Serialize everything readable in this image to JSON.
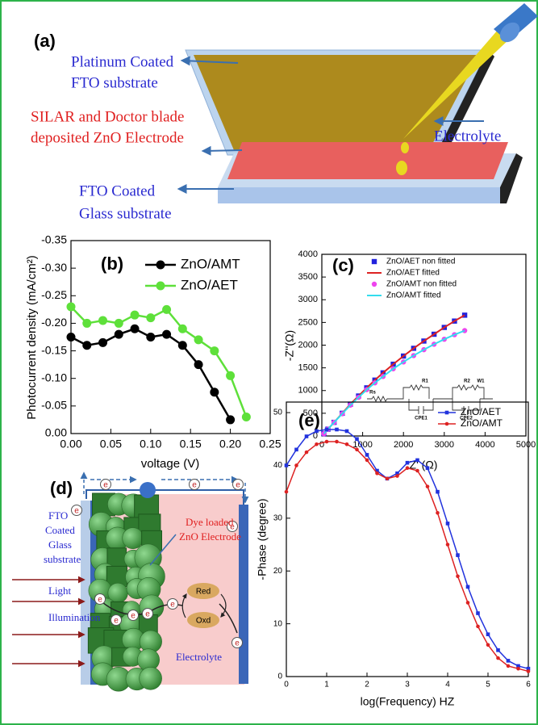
{
  "panel_a": {
    "label": "(a)",
    "platinum": [
      "Platinum Coated",
      "FTO substrate"
    ],
    "zno": [
      "SILAR and Doctor blade",
      "deposited ZnO Electrode"
    ],
    "fto": [
      "FTO Coated",
      "Glass substrate"
    ],
    "electrolyte": "Electrolyte"
  },
  "chart_data": [
    {
      "type": "line",
      "label": "(b)",
      "x_label": "voltage (V)",
      "y_label": "Photocurrent density (mA/cm²)",
      "xlim": [
        0,
        0.25
      ],
      "ylim": [
        0,
        -0.35
      ],
      "xticks": [
        {
          "value": 0,
          "label": "0.00"
        },
        0.05,
        {
          "value": 0.1,
          "label": "0.10"
        },
        0.15,
        {
          "value": 0.2,
          "label": "0.20"
        },
        0.25
      ],
      "yticks": [
        -0.35,
        {
          "value": -0.3,
          "label": "-0.30"
        },
        -0.25,
        {
          "value": -0.2,
          "label": "-0.20"
        },
        -0.15,
        {
          "value": -0.1,
          "label": "-0.10"
        },
        -0.05,
        {
          "value": 0,
          "label": "0.00"
        }
      ],
      "legend": "top-right",
      "series": [
        {
          "name": "ZnO/AMT",
          "color": "#000000",
          "marker": "circle",
          "x": [
            0,
            0.02,
            0.04,
            0.06,
            0.08,
            0.1,
            0.12,
            0.14,
            0.16,
            0.18,
            0.2
          ],
          "values": [
            -0.175,
            -0.16,
            -0.165,
            -0.18,
            -0.19,
            -0.175,
            -0.18,
            -0.16,
            -0.125,
            -0.075,
            -0.025
          ]
        },
        {
          "name": "ZnO/AET",
          "color": "#5ee03a",
          "marker": "circle",
          "x": [
            0,
            0.02,
            0.04,
            0.06,
            0.08,
            0.1,
            0.12,
            0.14,
            0.16,
            0.18,
            0.2,
            0.22
          ],
          "values": [
            -0.23,
            -0.2,
            -0.205,
            -0.2,
            -0.215,
            -0.21,
            -0.225,
            -0.19,
            -0.17,
            -0.15,
            -0.105,
            -0.03
          ]
        }
      ]
    },
    {
      "type": "scatter",
      "label": "(c)",
      "x_label": "Z' (Ω)",
      "y_label": "-Z''(Ω)",
      "xlim": [
        0,
        5000
      ],
      "ylim": [
        0,
        4000
      ],
      "xticks": [
        0,
        1000,
        2000,
        3000,
        4000,
        5000
      ],
      "yticks": [
        0,
        500,
        1000,
        1500,
        2000,
        2500,
        3000,
        3500,
        4000
      ],
      "legend": "top-right",
      "inset_labels": [
        "Rs",
        "R1",
        "R2",
        "W1",
        "CPE1",
        "CPE2"
      ],
      "x": [
        50,
        150,
        300,
        500,
        700,
        900,
        1100,
        1300,
        1500,
        1750,
        2000,
        2250,
        2500,
        2750,
        3000,
        3250,
        3500
      ],
      "series": [
        {
          "name": "ZnO/AET non fitted",
          "color": "#2222dd",
          "marker": "square",
          "line": false,
          "values": [
            50,
            150,
            300,
            500,
            700,
            880,
            1060,
            1230,
            1390,
            1580,
            1760,
            1930,
            2090,
            2240,
            2390,
            2530,
            2660
          ]
        },
        {
          "name": "ZnO/AET fitted",
          "color": "#dd2222",
          "values": [
            50,
            150,
            300,
            500,
            700,
            880,
            1060,
            1230,
            1390,
            1580,
            1760,
            1930,
            2090,
            2240,
            2390,
            2530,
            2660
          ]
        },
        {
          "name": "ZnO/AMT non fitted",
          "color": "#ee44ee",
          "marker": "circle",
          "line": false,
          "values": [
            50,
            150,
            300,
            490,
            680,
            850,
            1020,
            1170,
            1310,
            1480,
            1630,
            1770,
            1900,
            2020,
            2130,
            2230,
            2320
          ]
        },
        {
          "name": "ZnO/AMT fitted",
          "color": "#33ddee",
          "values": [
            50,
            150,
            300,
            490,
            680,
            850,
            1020,
            1170,
            1310,
            1480,
            1630,
            1770,
            1900,
            2020,
            2130,
            2230,
            2320
          ]
        }
      ]
    },
    {
      "type": "line",
      "label": "(e)",
      "x_label": "log(Frequency) HZ",
      "y_label": "-Phase (degree)",
      "xlim": [
        0,
        6
      ],
      "ylim": [
        0,
        52
      ],
      "xticks": [
        0,
        1,
        2,
        3,
        4,
        5,
        6
      ],
      "yticks": [
        0,
        10,
        20,
        30,
        40,
        50
      ],
      "legend": "top-right",
      "x": [
        0,
        0.25,
        0.5,
        0.75,
        1,
        1.25,
        1.5,
        1.75,
        2,
        2.25,
        2.5,
        2.75,
        3,
        3.25,
        3.5,
        3.75,
        4,
        4.25,
        4.5,
        4.75,
        5,
        5.25,
        5.5,
        5.75,
        6
      ],
      "series": [
        {
          "name": "ZnO/AET",
          "color": "#2233dd",
          "marker": "square",
          "values": [
            40,
            43,
            45.5,
            46.5,
            46.8,
            46.8,
            46.5,
            45,
            42,
            39,
            37.5,
            38.5,
            40.5,
            41,
            39.5,
            35,
            29,
            23,
            17,
            12,
            8,
            5,
            3,
            2,
            1.5
          ]
        },
        {
          "name": "ZnO/AMT",
          "color": "#dd2222",
          "marker": "circle",
          "values": [
            35,
            40,
            42.5,
            44,
            44.5,
            44.5,
            44,
            43,
            41,
            38.5,
            37.5,
            38,
            39.5,
            39,
            36,
            31,
            25,
            19,
            14,
            9.5,
            6,
            3.5,
            2,
            1.5,
            1
          ]
        }
      ]
    }
  ],
  "panel_d": {
    "label": "(d)",
    "fto": [
      "FTO",
      "Coated",
      "Glass",
      "substrate"
    ],
    "dye": [
      "Dye loaded",
      "ZnO Electrode"
    ],
    "light": [
      "Light",
      "Illumination"
    ],
    "red": "Red",
    "oxd": "Oxd",
    "electrolyte": "Electrolyte",
    "electron": "e"
  }
}
